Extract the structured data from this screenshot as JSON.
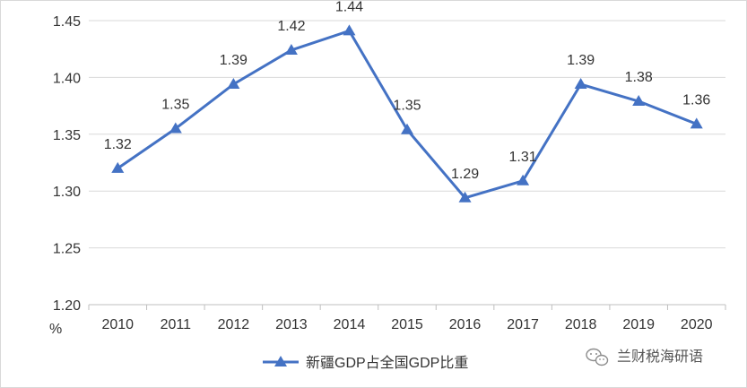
{
  "chart_data": {
    "type": "line",
    "title": "",
    "xlabel": "",
    "ylabel": "%",
    "ylim": [
      1.2,
      1.45
    ],
    "yticks": [
      "1.20",
      "1.25",
      "1.30",
      "1.35",
      "1.40",
      "1.45"
    ],
    "grid": true,
    "legend_position": "bottom",
    "categories": [
      "2010",
      "2011",
      "2012",
      "2013",
      "2014",
      "2015",
      "2016",
      "2017",
      "2018",
      "2019",
      "2020"
    ],
    "series": [
      {
        "name": "新疆GDP占全国GDP比重",
        "values": [
          1.32,
          1.355,
          1.394,
          1.424,
          1.441,
          1.354,
          1.294,
          1.309,
          1.394,
          1.379,
          1.359
        ],
        "labels": [
          "1.32",
          "1.35",
          "1.39",
          "1.42",
          "1.44",
          "1.35",
          "1.29",
          "1.31",
          "1.39",
          "1.38",
          "1.36"
        ],
        "color": "#4472c4",
        "marker": "triangle"
      }
    ]
  },
  "watermark": {
    "text": "兰财税海研语",
    "icon": "wechat-icon"
  }
}
